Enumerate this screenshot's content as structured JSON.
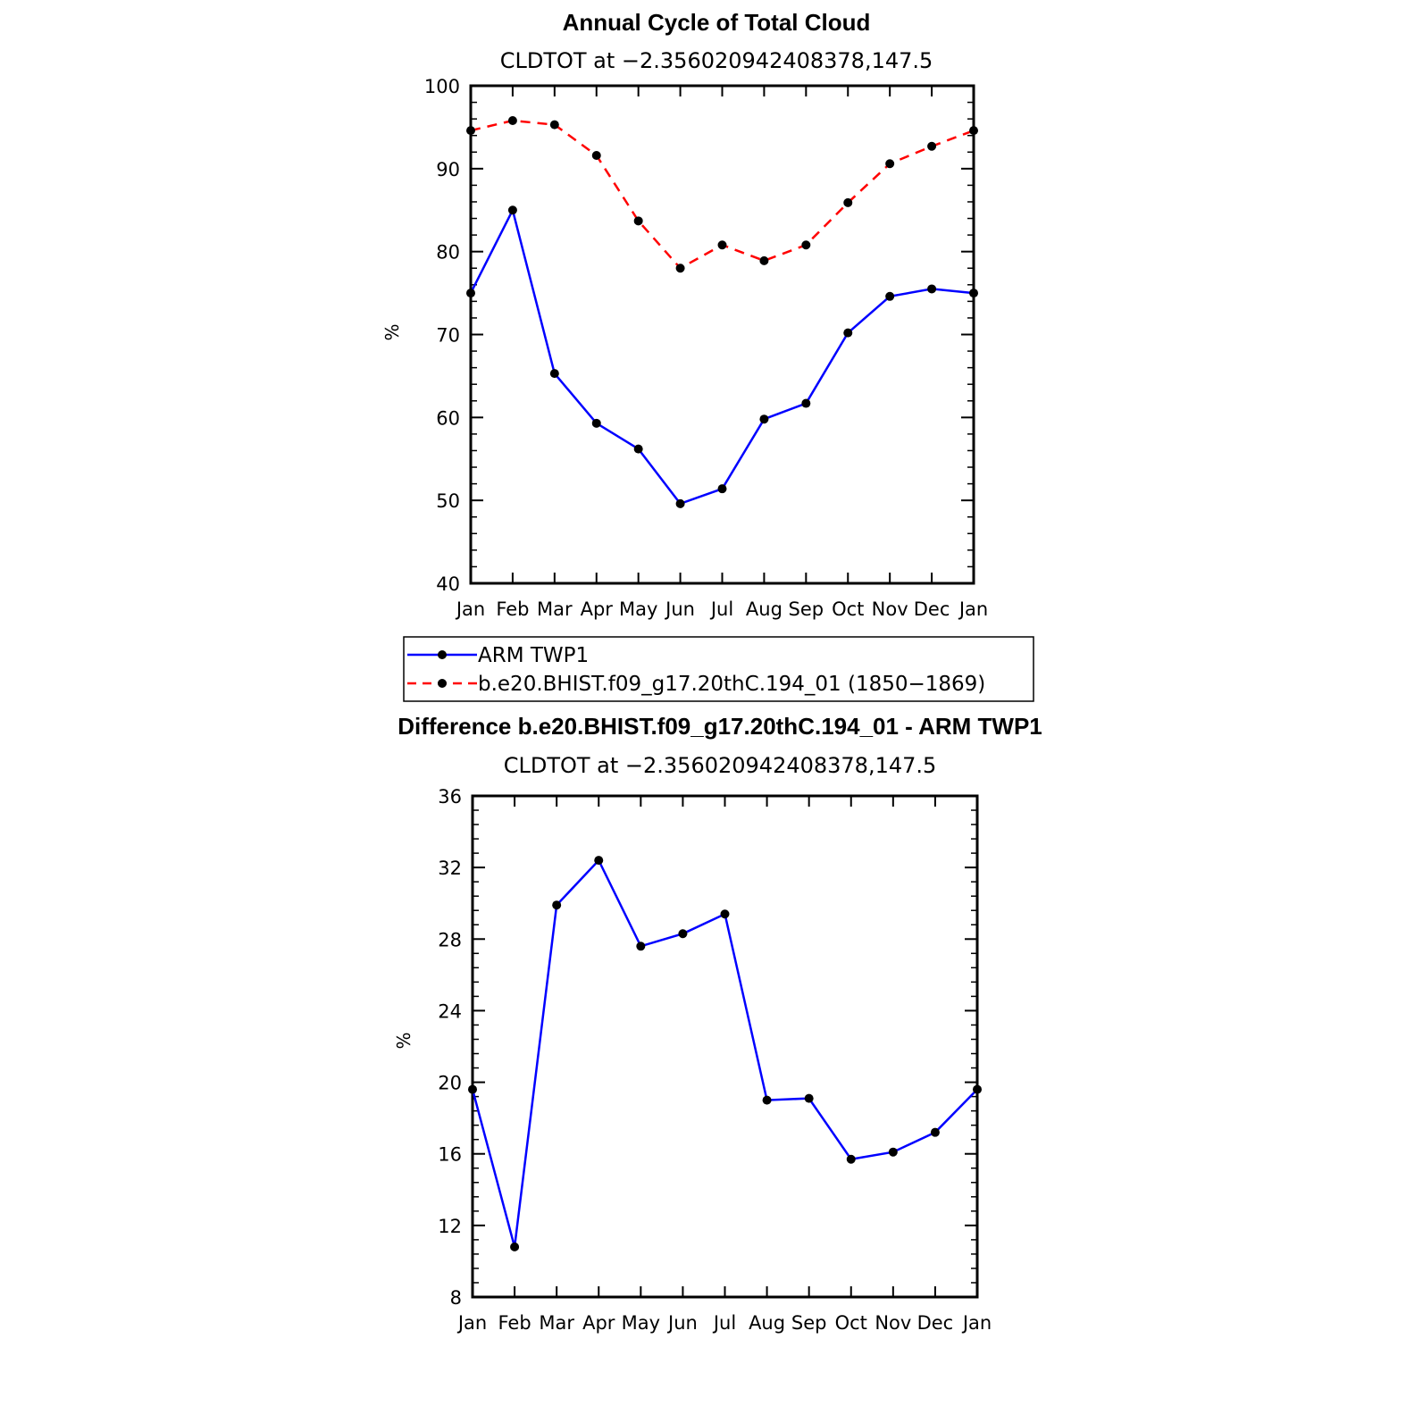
{
  "chart_data": [
    {
      "type": "line",
      "title": "Annual Cycle of Total Cloud",
      "subtitle": "CLDTOT at −2.356020942408378,147.5",
      "ylabel": "%",
      "xlabel": "",
      "categories": [
        "Jan",
        "Feb",
        "Mar",
        "Apr",
        "May",
        "Jun",
        "Jul",
        "Aug",
        "Sep",
        "Oct",
        "Nov",
        "Dec",
        "Jan"
      ],
      "ylim": [
        40,
        100
      ],
      "yticks": [
        40,
        50,
        60,
        70,
        80,
        90,
        100
      ],
      "grid": false,
      "series": [
        {
          "name": "ARM TWP1",
          "color": "#0000ff",
          "dash": "solid",
          "values": [
            75.0,
            85.0,
            65.3,
            59.3,
            56.2,
            49.6,
            51.4,
            59.8,
            61.7,
            70.2,
            74.6,
            75.5,
            75.0
          ]
        },
        {
          "name": "b.e20.BHIST.f09_g17.20thC.194_01 (1850−1869)",
          "color": "#ff0000",
          "dash": "dashed",
          "values": [
            94.6,
            95.8,
            95.3,
            91.6,
            83.7,
            78.0,
            80.8,
            78.9,
            80.8,
            85.9,
            90.6,
            92.7,
            94.6
          ]
        }
      ],
      "legend_placement": "below"
    },
    {
      "type": "line",
      "title": "Difference b.e20.BHIST.f09_g17.20thC.194_01 - ARM TWP1",
      "subtitle": "CLDTOT at −2.356020942408378,147.5",
      "ylabel": "%",
      "xlabel": "",
      "categories": [
        "Jan",
        "Feb",
        "Mar",
        "Apr",
        "May",
        "Jun",
        "Jul",
        "Aug",
        "Sep",
        "Oct",
        "Nov",
        "Dec",
        "Jan"
      ],
      "ylim": [
        8,
        36
      ],
      "yticks": [
        8,
        12,
        16,
        20,
        24,
        28,
        32,
        36
      ],
      "grid": false,
      "series": [
        {
          "color": "#0000ff",
          "dash": "solid",
          "values": [
            19.6,
            10.8,
            29.9,
            32.4,
            27.6,
            28.3,
            29.4,
            19.0,
            19.1,
            15.7,
            16.1,
            17.2,
            19.6
          ]
        }
      ]
    }
  ]
}
